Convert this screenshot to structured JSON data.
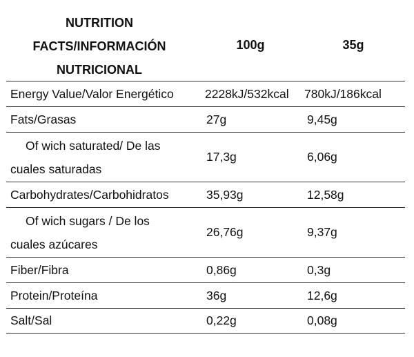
{
  "header": {
    "title_line1": "NUTRITION",
    "title_line2": "FACTS/INFORMACIÓN",
    "title_line3": "NUTRICIONAL",
    "col_100": "100g",
    "col_35": "35g"
  },
  "rows": [
    {
      "label": "Energy Value/Valor Energético",
      "v100": "2228kJ/532kcal",
      "v35": "780kJ/186kcal"
    },
    {
      "label": "Fats/Grasas",
      "v100": "27g",
      "v35": "9,45g"
    },
    {
      "label_line1": "Of wich saturated/ De las",
      "label_line2": "cuales saturadas",
      "v100": "17,3g",
      "v35": "6,06g"
    },
    {
      "label": "Carbohydrates/Carbohidratos",
      "v100": "35,93g",
      "v35": "12,58g"
    },
    {
      "label_line1": "Of wich sugars / De los",
      "label_line2": "cuales azúcares",
      "v100": "26,76g",
      "v35": "9,37g"
    },
    {
      "label": "Fiber/Fibra",
      "v100": "0,86g",
      "v35": "0,3g"
    },
    {
      "label": "Protein/Proteína",
      "v100": "36g",
      "v35": "12,6g"
    },
    {
      "label": "Salt/Sal",
      "v100": "0,22g",
      "v35": "0,08g"
    }
  ]
}
